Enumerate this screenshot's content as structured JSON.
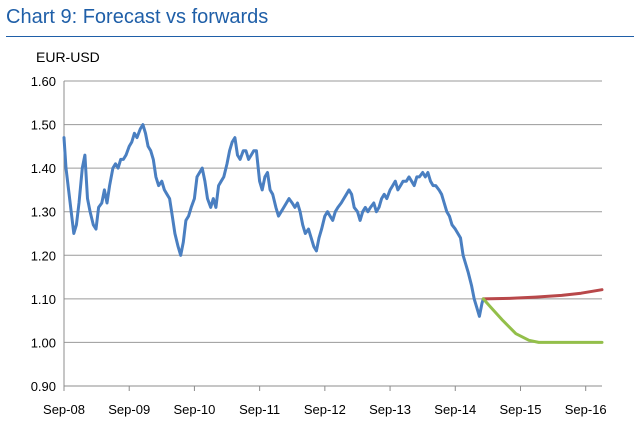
{
  "chart_data": {
    "type": "line",
    "title": "Chart 9: Forecast vs forwards",
    "ylabel": "EUR-USD",
    "ylim": [
      0.9,
      1.6
    ],
    "yticks": [
      "0.90",
      "1.00",
      "1.10",
      "1.20",
      "1.30",
      "1.40",
      "1.50",
      "1.60"
    ],
    "xlim": [
      2008.67,
      2016.92
    ],
    "xticks": [
      {
        "label": "Sep-08",
        "x": 2008.67
      },
      {
        "label": "Sep-09",
        "x": 2009.67
      },
      {
        "label": "Sep-10",
        "x": 2010.67
      },
      {
        "label": "Sep-11",
        "x": 2011.67
      },
      {
        "label": "Sep-12",
        "x": 2012.67
      },
      {
        "label": "Sep-13",
        "x": 2013.67
      },
      {
        "label": "Sep-14",
        "x": 2014.67
      },
      {
        "label": "Sep-15",
        "x": 2015.67
      },
      {
        "label": "Sep-16",
        "x": 2016.67
      }
    ],
    "grid": true,
    "series": [
      {
        "color": "#4a7fc1",
        "points": [
          [
            2008.67,
            1.47
          ],
          [
            2008.7,
            1.4
          ],
          [
            2008.74,
            1.35
          ],
          [
            2008.78,
            1.3
          ],
          [
            2008.82,
            1.25
          ],
          [
            2008.86,
            1.27
          ],
          [
            2008.9,
            1.32
          ],
          [
            2008.95,
            1.4
          ],
          [
            2008.99,
            1.43
          ],
          [
            2009.03,
            1.33
          ],
          [
            2009.07,
            1.3
          ],
          [
            2009.12,
            1.27
          ],
          [
            2009.16,
            1.26
          ],
          [
            2009.2,
            1.31
          ],
          [
            2009.25,
            1.32
          ],
          [
            2009.29,
            1.35
          ],
          [
            2009.33,
            1.32
          ],
          [
            2009.37,
            1.36
          ],
          [
            2009.42,
            1.4
          ],
          [
            2009.46,
            1.41
          ],
          [
            2009.5,
            1.4
          ],
          [
            2009.54,
            1.42
          ],
          [
            2009.58,
            1.42
          ],
          [
            2009.62,
            1.43
          ],
          [
            2009.67,
            1.45
          ],
          [
            2009.71,
            1.46
          ],
          [
            2009.75,
            1.48
          ],
          [
            2009.79,
            1.47
          ],
          [
            2009.84,
            1.49
          ],
          [
            2009.88,
            1.5
          ],
          [
            2009.92,
            1.48
          ],
          [
            2009.96,
            1.45
          ],
          [
            2010.0,
            1.44
          ],
          [
            2010.04,
            1.42
          ],
          [
            2010.08,
            1.38
          ],
          [
            2010.12,
            1.36
          ],
          [
            2010.17,
            1.37
          ],
          [
            2010.21,
            1.35
          ],
          [
            2010.25,
            1.34
          ],
          [
            2010.29,
            1.33
          ],
          [
            2010.33,
            1.29
          ],
          [
            2010.37,
            1.25
          ],
          [
            2010.42,
            1.22
          ],
          [
            2010.46,
            1.2
          ],
          [
            2010.5,
            1.23
          ],
          [
            2010.54,
            1.28
          ],
          [
            2010.58,
            1.29
          ],
          [
            2010.62,
            1.31
          ],
          [
            2010.67,
            1.33
          ],
          [
            2010.71,
            1.38
          ],
          [
            2010.75,
            1.39
          ],
          [
            2010.79,
            1.4
          ],
          [
            2010.83,
            1.37
          ],
          [
            2010.87,
            1.33
          ],
          [
            2010.92,
            1.31
          ],
          [
            2010.96,
            1.33
          ],
          [
            2011.0,
            1.31
          ],
          [
            2011.04,
            1.36
          ],
          [
            2011.08,
            1.37
          ],
          [
            2011.12,
            1.38
          ],
          [
            2011.17,
            1.41
          ],
          [
            2011.21,
            1.44
          ],
          [
            2011.25,
            1.46
          ],
          [
            2011.29,
            1.47
          ],
          [
            2011.33,
            1.43
          ],
          [
            2011.37,
            1.42
          ],
          [
            2011.42,
            1.44
          ],
          [
            2011.46,
            1.44
          ],
          [
            2011.5,
            1.42
          ],
          [
            2011.54,
            1.43
          ],
          [
            2011.58,
            1.44
          ],
          [
            2011.62,
            1.44
          ],
          [
            2011.67,
            1.37
          ],
          [
            2011.71,
            1.35
          ],
          [
            2011.75,
            1.38
          ],
          [
            2011.79,
            1.39
          ],
          [
            2011.83,
            1.35
          ],
          [
            2011.87,
            1.34
          ],
          [
            2011.92,
            1.31
          ],
          [
            2011.96,
            1.29
          ],
          [
            2012.0,
            1.3
          ],
          [
            2012.04,
            1.31
          ],
          [
            2012.08,
            1.32
          ],
          [
            2012.12,
            1.33
          ],
          [
            2012.17,
            1.32
          ],
          [
            2012.21,
            1.31
          ],
          [
            2012.25,
            1.32
          ],
          [
            2012.29,
            1.3
          ],
          [
            2012.33,
            1.27
          ],
          [
            2012.37,
            1.25
          ],
          [
            2012.42,
            1.26
          ],
          [
            2012.46,
            1.24
          ],
          [
            2012.5,
            1.22
          ],
          [
            2012.54,
            1.21
          ],
          [
            2012.58,
            1.24
          ],
          [
            2012.62,
            1.26
          ],
          [
            2012.67,
            1.29
          ],
          [
            2012.71,
            1.3
          ],
          [
            2012.75,
            1.29
          ],
          [
            2012.79,
            1.28
          ],
          [
            2012.83,
            1.3
          ],
          [
            2012.87,
            1.31
          ],
          [
            2012.92,
            1.32
          ],
          [
            2012.96,
            1.33
          ],
          [
            2013.0,
            1.34
          ],
          [
            2013.04,
            1.35
          ],
          [
            2013.08,
            1.34
          ],
          [
            2013.12,
            1.31
          ],
          [
            2013.17,
            1.3
          ],
          [
            2013.21,
            1.28
          ],
          [
            2013.25,
            1.3
          ],
          [
            2013.29,
            1.31
          ],
          [
            2013.33,
            1.3
          ],
          [
            2013.37,
            1.31
          ],
          [
            2013.42,
            1.32
          ],
          [
            2013.46,
            1.3
          ],
          [
            2013.5,
            1.31
          ],
          [
            2013.54,
            1.33
          ],
          [
            2013.58,
            1.34
          ],
          [
            2013.62,
            1.33
          ],
          [
            2013.67,
            1.35
          ],
          [
            2013.71,
            1.36
          ],
          [
            2013.75,
            1.37
          ],
          [
            2013.79,
            1.35
          ],
          [
            2013.83,
            1.36
          ],
          [
            2013.87,
            1.37
          ],
          [
            2013.92,
            1.37
          ],
          [
            2013.96,
            1.38
          ],
          [
            2014.0,
            1.37
          ],
          [
            2014.04,
            1.36
          ],
          [
            2014.08,
            1.38
          ],
          [
            2014.12,
            1.38
          ],
          [
            2014.17,
            1.39
          ],
          [
            2014.21,
            1.38
          ],
          [
            2014.25,
            1.39
          ],
          [
            2014.29,
            1.37
          ],
          [
            2014.33,
            1.36
          ],
          [
            2014.37,
            1.36
          ],
          [
            2014.42,
            1.35
          ],
          [
            2014.46,
            1.34
          ],
          [
            2014.5,
            1.32
          ],
          [
            2014.54,
            1.3
          ],
          [
            2014.58,
            1.29
          ],
          [
            2014.62,
            1.27
          ],
          [
            2014.67,
            1.26
          ],
          [
            2014.71,
            1.25
          ],
          [
            2014.75,
            1.24
          ],
          [
            2014.79,
            1.2
          ],
          [
            2014.83,
            1.18
          ],
          [
            2014.87,
            1.16
          ],
          [
            2014.92,
            1.13
          ],
          [
            2014.96,
            1.1
          ],
          [
            2015.0,
            1.08
          ],
          [
            2015.04,
            1.06
          ],
          [
            2015.08,
            1.09
          ],
          [
            2015.1,
            1.1
          ]
        ]
      },
      {
        "color": "#b8484a",
        "points": [
          [
            2015.1,
            1.1
          ],
          [
            2015.5,
            1.101
          ],
          [
            2015.9,
            1.104
          ],
          [
            2016.3,
            1.108
          ],
          [
            2016.6,
            1.113
          ],
          [
            2016.92,
            1.121
          ]
        ]
      },
      {
        "color": "#93bf4a",
        "points": [
          [
            2015.1,
            1.1
          ],
          [
            2015.22,
            1.08
          ],
          [
            2015.4,
            1.05
          ],
          [
            2015.6,
            1.02
          ],
          [
            2015.8,
            1.005
          ],
          [
            2015.95,
            1.0
          ],
          [
            2016.92,
            1.0
          ]
        ]
      }
    ]
  }
}
